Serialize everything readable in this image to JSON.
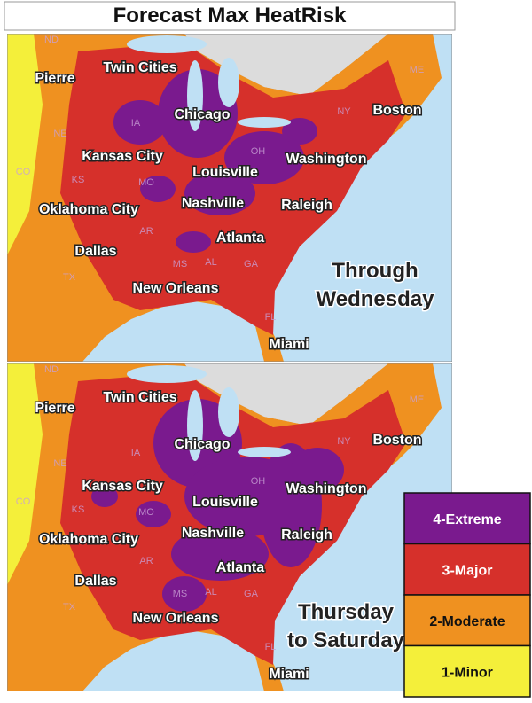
{
  "title": "Forecast Max HeatRisk",
  "panels": [
    {
      "label": [
        "Through",
        "Wednesday"
      ],
      "cities": [
        "Pierre",
        "Twin Cities",
        "Chicago",
        "Boston",
        "Kansas City",
        "Louisville",
        "Washington",
        "Oklahoma City",
        "Nashville",
        "Raleigh",
        "Atlanta",
        "Dallas",
        "New Orleans",
        "Miami"
      ],
      "states": [
        "ND",
        "NE",
        "CO",
        "KS",
        "IA",
        "MO",
        "AR",
        "MS",
        "AL",
        "GA",
        "FL",
        "TX",
        "OH",
        "NY",
        "ME"
      ]
    },
    {
      "label": [
        "Thursday",
        "to Saturday"
      ],
      "cities": [
        "Pierre",
        "Twin Cities",
        "Chicago",
        "Boston",
        "Kansas City",
        "Louisville",
        "Washington",
        "Oklahoma City",
        "Nashville",
        "Raleigh",
        "Atlanta",
        "Dallas",
        "New Orleans",
        "Miami"
      ],
      "states": [
        "ND",
        "NE",
        "CO",
        "KS",
        "IA",
        "MO",
        "AR",
        "MS",
        "AL",
        "GA",
        "FL",
        "TX",
        "OH",
        "NY",
        "ME"
      ]
    }
  ],
  "legend": [
    {
      "label": "4-Extreme",
      "color": "#7a1a8e"
    },
    {
      "label": "3-Major",
      "color": "#d6302b"
    },
    {
      "label": "2-Moderate",
      "color": "#ef9120"
    },
    {
      "label": "1-Minor",
      "color": "#f4ef3a"
    }
  ]
}
